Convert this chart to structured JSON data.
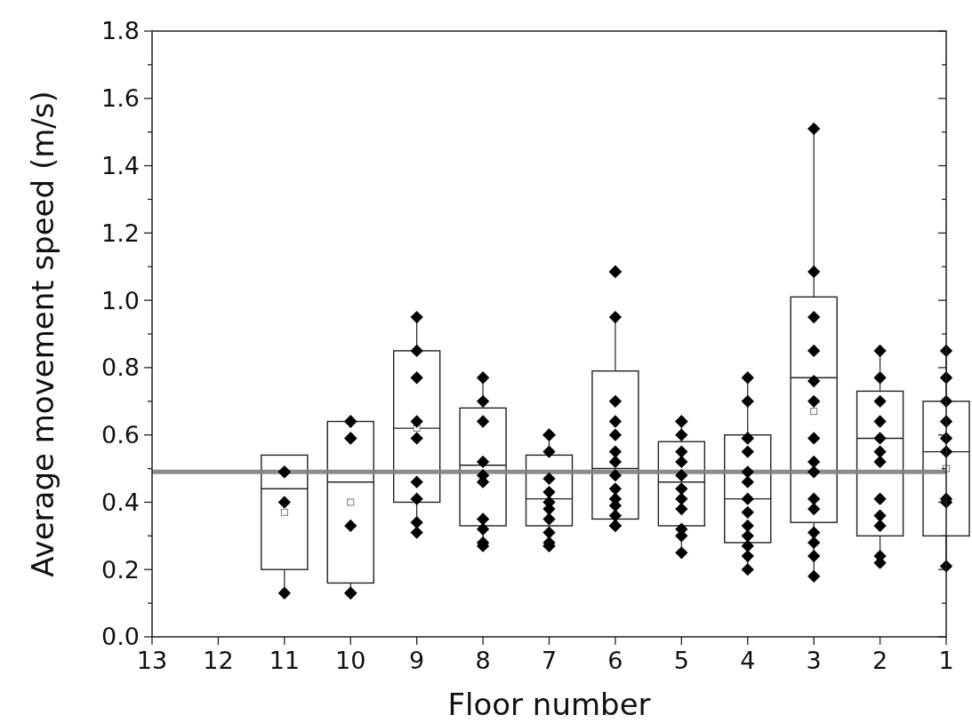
{
  "chart_data": {
    "type": "box",
    "xlabel": "Floor number",
    "ylabel": "Average movement speed (m/s)",
    "categories": [
      "13",
      "12",
      "11",
      "10",
      "9",
      "8",
      "7",
      "6",
      "5",
      "4",
      "3",
      "2",
      "1"
    ],
    "ylim": [
      0,
      1.8
    ],
    "yticks": [
      {
        "value": 0,
        "label": "0.0"
      },
      {
        "value": 0.1,
        "label": null
      },
      {
        "value": 0.2,
        "label": "0.2"
      },
      {
        "value": 0.3,
        "label": null
      },
      {
        "value": 0.4,
        "label": "0.4"
      },
      {
        "value": 0.5,
        "label": null
      },
      {
        "value": 0.6,
        "label": "0.6"
      },
      {
        "value": 0.7,
        "label": null
      },
      {
        "value": 0.8,
        "label": "0.8"
      },
      {
        "value": 0.9,
        "label": null
      },
      {
        "value": 1.0,
        "label": "1.0"
      },
      {
        "value": 1.1,
        "label": null
      },
      {
        "value": 1.2,
        "label": "1.2"
      },
      {
        "value": 1.3,
        "label": null
      },
      {
        "value": 1.4,
        "label": "1.4"
      },
      {
        "value": 1.5,
        "label": null
      },
      {
        "value": 1.6,
        "label": "1.6"
      },
      {
        "value": 1.7,
        "label": null
      },
      {
        "value": 1.8,
        "label": "1.8"
      }
    ],
    "boxes": [
      null,
      null,
      {
        "low": 0.13,
        "q1": 0.2,
        "median": 0.44,
        "q3": 0.54,
        "high": 0.54,
        "mean": 0.37
      },
      {
        "low": 0.13,
        "q1": 0.16,
        "median": 0.46,
        "q3": 0.64,
        "high": 0.64,
        "mean": 0.4
      },
      {
        "low": 0.31,
        "q1": 0.4,
        "median": 0.62,
        "q3": 0.85,
        "high": 0.95,
        "mean": 0.62
      },
      {
        "low": 0.27,
        "q1": 0.33,
        "median": 0.51,
        "q3": 0.68,
        "high": 0.77
      },
      {
        "low": 0.27,
        "q1": 0.33,
        "median": 0.41,
        "q3": 0.54,
        "high": 0.6
      },
      {
        "low": 0.33,
        "q1": 0.35,
        "median": 0.5,
        "q3": 0.79,
        "high": 0.95
      },
      {
        "low": 0.25,
        "q1": 0.33,
        "median": 0.46,
        "q3": 0.58,
        "high": 0.64
      },
      {
        "low": 0.2,
        "q1": 0.28,
        "median": 0.41,
        "q3": 0.6,
        "high": 0.77
      },
      {
        "low": 0.18,
        "q1": 0.34,
        "median": 0.77,
        "q3": 1.01,
        "high": 1.51,
        "mean": 0.67
      },
      {
        "low": 0.22,
        "q1": 0.3,
        "median": 0.59,
        "q3": 0.73,
        "high": 0.85
      },
      {
        "low": 0.21,
        "q1": 0.3,
        "median": 0.55,
        "q3": 0.7,
        "high": 0.85,
        "mean": 0.5
      }
    ],
    "series": [
      {
        "type": "scatter",
        "color": "#000000",
        "x": [
          "11",
          "11",
          "11",
          "11",
          "10",
          "10",
          "10",
          "10",
          "10",
          "10",
          "10",
          "9",
          "9",
          "9",
          "9",
          "9",
          "9",
          "9",
          "9",
          "9",
          "8",
          "8",
          "8",
          "8",
          "8",
          "8",
          "8",
          "8",
          "8",
          "8",
          "7",
          "7",
          "7",
          "7",
          "7",
          "7",
          "7",
          "7",
          "7",
          "7",
          "7",
          "7",
          "7",
          "6",
          "6",
          "6",
          "6",
          "6",
          "6",
          "6",
          "6",
          "6",
          "6",
          "6",
          "6",
          "6",
          "6",
          "6",
          "5",
          "5",
          "5",
          "5",
          "5",
          "5",
          "5",
          "5",
          "5",
          "5",
          "5",
          "5",
          "4",
          "4",
          "4",
          "4",
          "4",
          "4",
          "4",
          "4",
          "4",
          "4",
          "4",
          "4",
          "4",
          "4",
          "3",
          "3",
          "3",
          "3",
          "3",
          "3",
          "3",
          "3",
          "3",
          "3",
          "3",
          "3",
          "3",
          "3",
          "3",
          "2",
          "2",
          "2",
          "2",
          "2",
          "2",
          "2",
          "2",
          "2",
          "2",
          "2",
          "2",
          "1",
          "1",
          "1",
          "1",
          "1",
          "1",
          "1",
          "1",
          "1"
        ],
        "values": [
          0.49,
          0.49,
          0.4,
          0.13,
          0.64,
          0.64,
          0.59,
          0.59,
          0.33,
          0.13,
          0.13,
          0.95,
          0.85,
          0.77,
          0.64,
          0.59,
          0.46,
          0.41,
          0.34,
          0.31,
          0.77,
          0.7,
          0.64,
          0.52,
          0.48,
          0.46,
          0.35,
          0.32,
          0.28,
          0.27,
          0.6,
          0.6,
          0.6,
          0.55,
          0.47,
          0.43,
          0.4,
          0.38,
          0.35,
          0.31,
          0.28,
          0.27,
          0.27,
          1.085,
          1.085,
          0.95,
          0.7,
          0.64,
          0.6,
          0.55,
          0.52,
          0.48,
          0.44,
          0.41,
          0.39,
          0.36,
          0.33,
          0.33,
          0.64,
          0.64,
          0.6,
          0.55,
          0.52,
          0.48,
          0.44,
          0.41,
          0.38,
          0.32,
          0.3,
          0.25,
          0.77,
          0.7,
          0.59,
          0.59,
          0.55,
          0.49,
          0.46,
          0.41,
          0.37,
          0.33,
          0.3,
          0.27,
          0.24,
          0.2,
          1.51,
          1.085,
          0.95,
          0.85,
          0.76,
          0.7,
          0.59,
          0.52,
          0.49,
          0.41,
          0.38,
          0.31,
          0.28,
          0.24,
          0.18,
          0.85,
          0.77,
          0.7,
          0.64,
          0.59,
          0.55,
          0.52,
          0.41,
          0.36,
          0.33,
          0.24,
          0.22,
          0.85,
          0.77,
          0.7,
          0.64,
          0.59,
          0.55,
          0.41,
          0.4,
          0.21
        ]
      }
    ],
    "marker": "diamond",
    "ref_lines": [
      {
        "axis": "y",
        "value": 0.49,
        "color": "#808080"
      }
    ]
  }
}
